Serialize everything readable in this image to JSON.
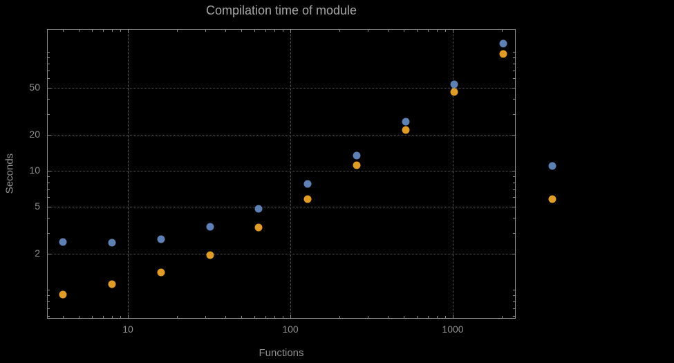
{
  "colors": {
    "bg": "#000000",
    "frame": "#8a8a8a",
    "grid": "#5e5e5e",
    "text": "#919191",
    "title": "#a6a6a6"
  },
  "chart_data": {
    "type": "scatter",
    "title": "Compilation time of module",
    "xlabel": "Functions",
    "ylabel": "Seconds",
    "x_scale": "log",
    "y_scale": "log",
    "grid": "dotted",
    "legend": "none",
    "x_ticks": [
      10,
      100,
      1000
    ],
    "x_tick_labels": [
      "10",
      "100",
      "1000"
    ],
    "y_ticks": [
      2,
      5,
      10,
      20,
      50
    ],
    "y_tick_labels": [
      "2",
      "5",
      "10",
      "20",
      "50"
    ],
    "x": [
      4,
      8,
      16,
      32,
      64,
      128,
      256,
      512,
      1024,
      2048,
      4096
    ],
    "series": [
      {
        "name": "blue",
        "color": "#5e81b5",
        "values": [
          2.51,
          2.49,
          2.66,
          3.38,
          4.79,
          7.8,
          13.4,
          26,
          53,
          117,
          11
        ]
      },
      {
        "name": "orange",
        "color": "#e19c24",
        "values": [
          0.91,
          1.11,
          1.4,
          1.95,
          3.34,
          5.8,
          11.1,
          22,
          46,
          96,
          5.8
        ]
      }
    ]
  }
}
